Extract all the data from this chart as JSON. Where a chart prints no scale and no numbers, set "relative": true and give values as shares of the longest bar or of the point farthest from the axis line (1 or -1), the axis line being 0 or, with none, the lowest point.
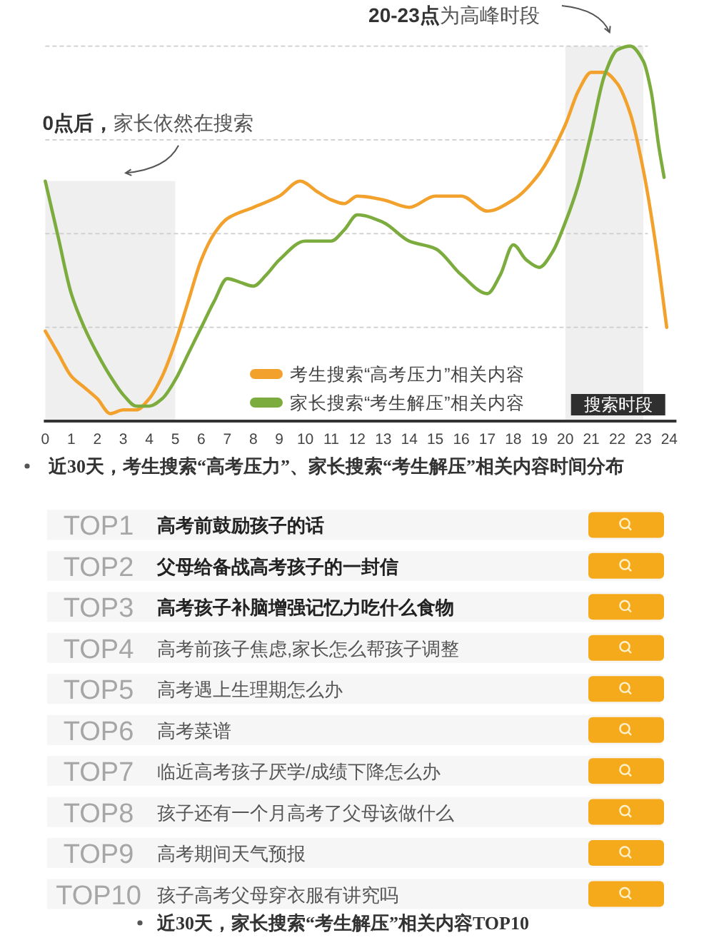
{
  "chart_data": [
    {
      "type": "line",
      "title": "近30天，考生搜索“高考压力”、家长搜索“考生解压”相关内容时间分布",
      "relative": true,
      "xlim": [
        0,
        24
      ],
      "xticks": [
        0,
        1,
        2,
        3,
        4,
        5,
        6,
        7,
        8,
        9,
        10,
        11,
        12,
        13,
        14,
        15,
        16,
        17,
        18,
        19,
        20,
        21,
        22,
        23,
        24
      ],
      "grid": "y",
      "legend": "bottom",
      "series": [
        {
          "name": "考生搜索“高考压力”相关内容",
          "color": "#f2a22c",
          "x": [
            0,
            0.5,
            1,
            1.5,
            2,
            2.5,
            3,
            3.5,
            4,
            4.5,
            5,
            5.5,
            6,
            6.5,
            7,
            8,
            9,
            9.8,
            10.5,
            11,
            11.5,
            12,
            13,
            14,
            15,
            15.7,
            16,
            17,
            18,
            19,
            20,
            20.5,
            21,
            21.5,
            22,
            22.5,
            23,
            23.5,
            23.9
          ],
          "values": [
            0.24,
            0.18,
            0.12,
            0.09,
            0.06,
            0.02,
            0.03,
            0.03,
            0.06,
            0.12,
            0.21,
            0.32,
            0.43,
            0.5,
            0.54,
            0.57,
            0.6,
            0.64,
            0.61,
            0.59,
            0.58,
            0.6,
            0.59,
            0.57,
            0.6,
            0.6,
            0.6,
            0.56,
            0.59,
            0.66,
            0.79,
            0.88,
            0.93,
            0.93,
            0.9,
            0.82,
            0.67,
            0.46,
            0.25
          ]
        },
        {
          "name": "家长搜索“考生解压”相关内容",
          "color": "#7dac3e",
          "x": [
            0,
            0.5,
            1,
            1.5,
            2,
            2.5,
            3,
            3.5,
            4,
            4.5,
            5,
            5.5,
            6,
            6.5,
            7,
            7.5,
            8,
            8.5,
            9,
            10,
            11,
            11.5,
            12,
            13,
            14,
            15,
            16,
            17,
            17.5,
            18,
            18.5,
            19,
            19.5,
            20,
            20.5,
            21,
            21.5,
            22,
            22.5,
            23,
            23.3,
            23.6,
            23.8
          ],
          "values": [
            0.64,
            0.49,
            0.34,
            0.25,
            0.18,
            0.12,
            0.07,
            0.04,
            0.04,
            0.06,
            0.11,
            0.18,
            0.25,
            0.32,
            0.38,
            0.37,
            0.36,
            0.39,
            0.43,
            0.48,
            0.48,
            0.51,
            0.55,
            0.53,
            0.48,
            0.46,
            0.39,
            0.34,
            0.39,
            0.47,
            0.43,
            0.41,
            0.45,
            0.53,
            0.63,
            0.77,
            0.92,
            0.99,
            1,
            0.96,
            0.88,
            0.73,
            0.65
          ]
        }
      ],
      "bands": [
        {
          "axis": "x",
          "from": 0,
          "to": 5,
          "color": "#efefef"
        },
        {
          "axis": "x",
          "from": 20,
          "to": 23,
          "label": "搜索时段",
          "color": "#efefef"
        }
      ],
      "annotations": [
        "**0点后，**家长依然在搜索",
        "**20-23点**为高峰时段"
      ]
    },
    {
      "type": "other",
      "title": "近30天，家长搜索“考生解压”相关内容TOP10",
      "categories": [
        "高考前鼓励孩子的话",
        "父母给备战高考孩子的一封信",
        "高考孩子补脑增强记忆力吃什么食物",
        "高考前孩子焦虑,家长怎么帮孩子调整",
        "高考遇上生理期怎么办",
        "高考菜谱",
        "临近高考孩子厌学/成绩下降怎么办",
        "孩子还有一个月高考了父母该做什么",
        "高考期间天气预报",
        "孩子高考父母穿衣服有讲究吗"
      ],
      "y_categories": [
        "TOP1",
        "TOP2",
        "TOP3",
        "TOP4",
        "TOP5",
        "TOP6",
        "TOP7",
        "TOP8",
        "TOP9",
        "TOP10"
      ]
    }
  ]
}
